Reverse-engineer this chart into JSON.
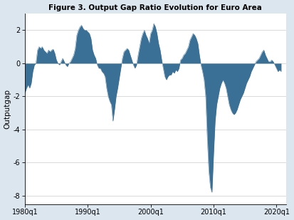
{
  "title": "Figure 3. Output Gap Ratio Evolution for Euro Area",
  "ylabel": "Outputgap",
  "xlabel": "",
  "xlim_start": 1980.0,
  "xlim_end": 2021.5,
  "ylim": [
    -8.5,
    3.0
  ],
  "yticks": [
    2,
    0,
    -2,
    -4,
    -6,
    -8
  ],
  "xtick_labels": [
    "1980q1",
    "1990q1",
    "2000q1",
    "2010q1",
    "2020q1"
  ],
  "xtick_positions": [
    1980.0,
    1990.0,
    2000.0,
    2010.0,
    2020.0
  ],
  "fill_color": "#3a6f96",
  "plot_bg_color": "#ffffff",
  "figure_bg_color": "#dce6ef",
  "series": [
    [
      1980.0,
      -1.8
    ],
    [
      1980.25,
      -1.5
    ],
    [
      1980.5,
      -1.3
    ],
    [
      1980.75,
      -1.5
    ],
    [
      1981.0,
      -1.2
    ],
    [
      1981.25,
      -0.5
    ],
    [
      1981.5,
      -0.1
    ],
    [
      1981.75,
      0.0
    ],
    [
      1982.0,
      0.8
    ],
    [
      1982.25,
      1.0
    ],
    [
      1982.5,
      0.9
    ],
    [
      1982.75,
      1.0
    ],
    [
      1983.0,
      0.8
    ],
    [
      1983.25,
      0.7
    ],
    [
      1983.5,
      0.6
    ],
    [
      1983.75,
      0.8
    ],
    [
      1984.0,
      0.7
    ],
    [
      1984.25,
      0.8
    ],
    [
      1984.5,
      0.85
    ],
    [
      1984.75,
      0.6
    ],
    [
      1985.0,
      0.2
    ],
    [
      1985.25,
      0.0
    ],
    [
      1985.5,
      -0.1
    ],
    [
      1985.75,
      0.1
    ],
    [
      1986.0,
      0.3
    ],
    [
      1986.25,
      0.1
    ],
    [
      1986.5,
      -0.1
    ],
    [
      1986.75,
      -0.2
    ],
    [
      1987.0,
      0.0
    ],
    [
      1987.25,
      0.1
    ],
    [
      1987.5,
      0.3
    ],
    [
      1987.75,
      0.5
    ],
    [
      1988.0,
      0.9
    ],
    [
      1988.25,
      1.7
    ],
    [
      1988.5,
      2.0
    ],
    [
      1988.75,
      2.2
    ],
    [
      1989.0,
      2.3
    ],
    [
      1989.25,
      2.1
    ],
    [
      1989.5,
      2.0
    ],
    [
      1989.75,
      2.0
    ],
    [
      1990.0,
      1.9
    ],
    [
      1990.25,
      1.8
    ],
    [
      1990.5,
      1.5
    ],
    [
      1990.75,
      0.8
    ],
    [
      1991.0,
      0.5
    ],
    [
      1991.25,
      0.3
    ],
    [
      1991.5,
      -0.1
    ],
    [
      1991.75,
      -0.3
    ],
    [
      1992.0,
      -0.3
    ],
    [
      1992.25,
      -0.5
    ],
    [
      1992.5,
      -0.6
    ],
    [
      1992.75,
      -0.8
    ],
    [
      1993.0,
      -1.5
    ],
    [
      1993.25,
      -2.0
    ],
    [
      1993.5,
      -2.3
    ],
    [
      1993.75,
      -2.5
    ],
    [
      1994.0,
      -3.5
    ],
    [
      1994.25,
      -2.8
    ],
    [
      1994.5,
      -2.0
    ],
    [
      1994.75,
      -1.5
    ],
    [
      1995.0,
      -0.9
    ],
    [
      1995.25,
      -0.3
    ],
    [
      1995.5,
      0.3
    ],
    [
      1995.75,
      0.7
    ],
    [
      1996.0,
      0.8
    ],
    [
      1996.25,
      0.9
    ],
    [
      1996.5,
      0.8
    ],
    [
      1996.75,
      0.5
    ],
    [
      1997.0,
      0.2
    ],
    [
      1997.25,
      -0.1
    ],
    [
      1997.5,
      -0.3
    ],
    [
      1997.75,
      -0.1
    ],
    [
      1998.0,
      0.5
    ],
    [
      1998.25,
      1.0
    ],
    [
      1998.5,
      1.5
    ],
    [
      1998.75,
      1.8
    ],
    [
      1999.0,
      2.0
    ],
    [
      1999.25,
      1.7
    ],
    [
      1999.5,
      1.5
    ],
    [
      1999.75,
      1.2
    ],
    [
      2000.0,
      1.8
    ],
    [
      2000.25,
      2.0
    ],
    [
      2000.5,
      2.4
    ],
    [
      2000.75,
      2.2
    ],
    [
      2001.0,
      1.8
    ],
    [
      2001.25,
      1.2
    ],
    [
      2001.5,
      0.8
    ],
    [
      2001.75,
      0.2
    ],
    [
      2002.0,
      -0.3
    ],
    [
      2002.25,
      -0.8
    ],
    [
      2002.5,
      -1.0
    ],
    [
      2002.75,
      -0.8
    ],
    [
      2003.0,
      -0.7
    ],
    [
      2003.25,
      -0.7
    ],
    [
      2003.5,
      -0.5
    ],
    [
      2003.75,
      -0.6
    ],
    [
      2004.0,
      -0.4
    ],
    [
      2004.25,
      -0.5
    ],
    [
      2004.5,
      -0.3
    ],
    [
      2004.75,
      0.2
    ],
    [
      2005.0,
      0.3
    ],
    [
      2005.25,
      0.5
    ],
    [
      2005.5,
      0.6
    ],
    [
      2005.75,
      0.8
    ],
    [
      2006.0,
      1.0
    ],
    [
      2006.25,
      1.4
    ],
    [
      2006.5,
      1.6
    ],
    [
      2006.75,
      1.8
    ],
    [
      2007.0,
      1.7
    ],
    [
      2007.25,
      1.5
    ],
    [
      2007.5,
      1.2
    ],
    [
      2007.75,
      0.5
    ],
    [
      2008.0,
      -0.1
    ],
    [
      2008.25,
      -0.5
    ],
    [
      2008.5,
      -1.0
    ],
    [
      2008.75,
      -2.0
    ],
    [
      2009.0,
      -4.5
    ],
    [
      2009.25,
      -6.5
    ],
    [
      2009.5,
      -7.5
    ],
    [
      2009.75,
      -7.8
    ],
    [
      2010.0,
      -5.5
    ],
    [
      2010.25,
      -3.5
    ],
    [
      2010.5,
      -2.5
    ],
    [
      2010.75,
      -2.0
    ],
    [
      2011.0,
      -1.5
    ],
    [
      2011.25,
      -1.2
    ],
    [
      2011.5,
      -1.0
    ],
    [
      2011.75,
      -1.2
    ],
    [
      2012.0,
      -1.5
    ],
    [
      2012.25,
      -2.0
    ],
    [
      2012.5,
      -2.5
    ],
    [
      2012.75,
      -2.8
    ],
    [
      2013.0,
      -3.0
    ],
    [
      2013.25,
      -3.1
    ],
    [
      2013.5,
      -3.0
    ],
    [
      2013.75,
      -2.8
    ],
    [
      2014.0,
      -2.5
    ],
    [
      2014.25,
      -2.2
    ],
    [
      2014.5,
      -2.0
    ],
    [
      2014.75,
      -1.8
    ],
    [
      2015.0,
      -1.5
    ],
    [
      2015.25,
      -1.2
    ],
    [
      2015.5,
      -1.0
    ],
    [
      2015.75,
      -0.8
    ],
    [
      2016.0,
      -0.5
    ],
    [
      2016.25,
      -0.3
    ],
    [
      2016.5,
      -0.1
    ],
    [
      2016.75,
      0.1
    ],
    [
      2017.0,
      0.2
    ],
    [
      2017.25,
      0.3
    ],
    [
      2017.5,
      0.5
    ],
    [
      2017.75,
      0.7
    ],
    [
      2018.0,
      0.8
    ],
    [
      2018.25,
      0.5
    ],
    [
      2018.5,
      0.3
    ],
    [
      2018.75,
      0.1
    ],
    [
      2019.0,
      0.1
    ],
    [
      2019.25,
      0.2
    ],
    [
      2019.5,
      0.1
    ],
    [
      2019.75,
      -0.1
    ],
    [
      2020.0,
      -0.3
    ],
    [
      2020.25,
      -0.5
    ],
    [
      2020.5,
      -0.4
    ],
    [
      2020.75,
      -0.5
    ]
  ]
}
